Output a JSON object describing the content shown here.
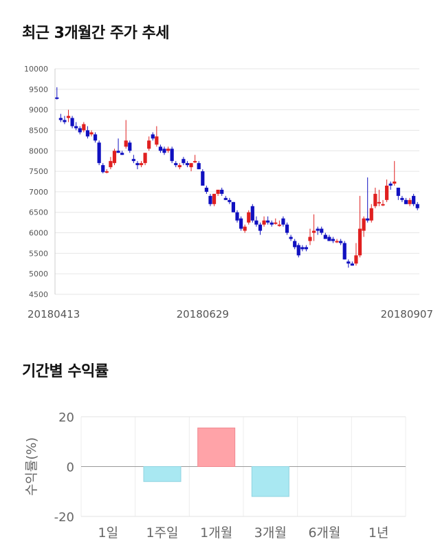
{
  "titles": {
    "chart1": "최근 3개월간 주가 추세",
    "chart2": "기간별 수익률"
  },
  "colors": {
    "up": "#e02020",
    "down": "#1010c0",
    "positive_bar": "#ffa3a8",
    "negative_bar": "#a9e8f2",
    "grid": "#e6e6e6"
  },
  "chart_data": [
    {
      "type": "candlestick",
      "title": "최근 3개월간 주가 추세",
      "ylim": [
        4500,
        10000
      ],
      "y_ticks": [
        10000,
        9500,
        9000,
        8500,
        8000,
        7500,
        7000,
        6500,
        6000,
        5500,
        5000,
        4500
      ],
      "x_tick_labels": [
        {
          "index": 0,
          "label": "20180413"
        },
        {
          "index": 38,
          "label": "20180629"
        },
        {
          "index": 76,
          "label": "20180907"
        }
      ],
      "up_color": "#e02020",
      "down_color": "#1010c0",
      "ohlc": [
        [
          9300,
          9550,
          9250,
          9280
        ],
        [
          8800,
          8900,
          8700,
          8750
        ],
        [
          8750,
          8850,
          8650,
          8700
        ],
        [
          8800,
          9000,
          8700,
          8850
        ],
        [
          8800,
          8850,
          8550,
          8600
        ],
        [
          8600,
          8700,
          8500,
          8550
        ],
        [
          8550,
          8600,
          8400,
          8450
        ],
        [
          8500,
          8700,
          8450,
          8650
        ],
        [
          8500,
          8600,
          8300,
          8350
        ],
        [
          8400,
          8500,
          8350,
          8450
        ],
        [
          8400,
          8450,
          8200,
          8250
        ],
        [
          8200,
          8250,
          7650,
          7700
        ],
        [
          7650,
          7700,
          7450,
          7480
        ],
        [
          7500,
          7550,
          7450,
          7500
        ],
        [
          7600,
          7850,
          7550,
          7750
        ],
        [
          7700,
          8050,
          7650,
          8000
        ],
        [
          8000,
          8300,
          7950,
          7950
        ],
        [
          7950,
          8000,
          7900,
          7900
        ],
        [
          8100,
          8750,
          8050,
          8250
        ],
        [
          8200,
          8250,
          7950,
          8000
        ],
        [
          7800,
          7900,
          7700,
          7750
        ],
        [
          7700,
          7750,
          7550,
          7650
        ],
        [
          7650,
          7750,
          7600,
          7700
        ],
        [
          7700,
          7950,
          7650,
          7950
        ],
        [
          8050,
          8350,
          8000,
          8250
        ],
        [
          8400,
          8450,
          8250,
          8300
        ],
        [
          8150,
          8600,
          8100,
          8350
        ],
        [
          8100,
          8150,
          7950,
          8000
        ],
        [
          8050,
          8100,
          7900,
          7950
        ],
        [
          8000,
          8100,
          7950,
          8050
        ],
        [
          8050,
          8100,
          7700,
          7750
        ],
        [
          7700,
          7750,
          7600,
          7650
        ],
        [
          7600,
          7700,
          7550,
          7650
        ],
        [
          7800,
          7850,
          7650,
          7700
        ],
        [
          7700,
          7750,
          7600,
          7650
        ],
        [
          7600,
          7700,
          7500,
          7700
        ],
        [
          7750,
          7900,
          7700,
          7750
        ],
        [
          7700,
          7750,
          7550,
          7550
        ],
        [
          7500,
          7550,
          7150,
          7150
        ],
        [
          7100,
          7150,
          6950,
          7000
        ],
        [
          6900,
          6950,
          6650,
          6700
        ],
        [
          6700,
          6950,
          6650,
          6950
        ],
        [
          6950,
          7050,
          6900,
          7050
        ],
        [
          7050,
          7100,
          6900,
          6950
        ],
        [
          6850,
          6900,
          6800,
          6800
        ],
        [
          6800,
          6850,
          6700,
          6750
        ],
        [
          6750,
          6750,
          6500,
          6500
        ],
        [
          6500,
          6550,
          6250,
          6300
        ],
        [
          6350,
          6400,
          6050,
          6100
        ],
        [
          6050,
          6200,
          6000,
          6150
        ],
        [
          6250,
          6550,
          6200,
          6500
        ],
        [
          6650,
          6700,
          6250,
          6300
        ],
        [
          6300,
          6400,
          6150,
          6200
        ],
        [
          6200,
          6250,
          5950,
          6050
        ],
        [
          6200,
          6400,
          6150,
          6300
        ],
        [
          6300,
          6400,
          6200,
          6250
        ],
        [
          6250,
          6300,
          6150,
          6200
        ],
        [
          6250,
          6350,
          6200,
          6250
        ],
        [
          6200,
          6300,
          6150,
          6200
        ],
        [
          6350,
          6400,
          6150,
          6200
        ],
        [
          6200,
          6250,
          5950,
          6000
        ],
        [
          5900,
          5950,
          5800,
          5850
        ],
        [
          5800,
          5850,
          5600,
          5650
        ],
        [
          5700,
          5750,
          5400,
          5450
        ],
        [
          5650,
          5700,
          5550,
          5600
        ],
        [
          5650,
          5700,
          5550,
          5600
        ],
        [
          5800,
          6100,
          5700,
          5900
        ],
        [
          6000,
          6450,
          5800,
          6050
        ],
        [
          6100,
          6150,
          5950,
          6050
        ],
        [
          6100,
          6150,
          5950,
          6000
        ],
        [
          5950,
          6000,
          5850,
          5850
        ],
        [
          5900,
          5950,
          5800,
          5800
        ],
        [
          5850,
          5900,
          5750,
          5800
        ],
        [
          5800,
          5850,
          5750,
          5800
        ],
        [
          5800,
          5850,
          5700,
          5750
        ],
        [
          5750,
          5800,
          5350,
          5350
        ],
        [
          5300,
          5350,
          5150,
          5250
        ],
        [
          5250,
          5300,
          5200,
          5200
        ],
        [
          5250,
          5750,
          5200,
          5450
        ],
        [
          5450,
          6900,
          5400,
          6100
        ],
        [
          6050,
          6400,
          5900,
          6350
        ],
        [
          6350,
          7350,
          6250,
          6300
        ],
        [
          6300,
          6700,
          6250,
          6600
        ],
        [
          6650,
          7100,
          6600,
          6950
        ],
        [
          6750,
          7050,
          6650,
          6750
        ],
        [
          6700,
          6800,
          6650,
          6700
        ],
        [
          6800,
          7300,
          6750,
          7150
        ],
        [
          7200,
          7250,
          7050,
          7150
        ],
        [
          7200,
          7750,
          7150,
          7250
        ],
        [
          7100,
          7100,
          6800,
          6900
        ],
        [
          6850,
          6900,
          6750,
          6800
        ],
        [
          6800,
          6850,
          6700,
          6700
        ],
        [
          6700,
          6850,
          6650,
          6800
        ],
        [
          6900,
          6950,
          6650,
          6700
        ],
        [
          6700,
          6750,
          6550,
          6600
        ]
      ]
    },
    {
      "type": "bar",
      "title": "기간별 수익률",
      "ylabel": "수익률(%)",
      "ylim": [
        -20,
        20
      ],
      "y_ticks": [
        20,
        0,
        -20
      ],
      "categories": [
        "1일",
        "1주일",
        "1개월",
        "3개월",
        "6개월",
        "1년"
      ],
      "values": [
        0,
        -6,
        15.5,
        -12,
        0,
        0
      ]
    }
  ]
}
